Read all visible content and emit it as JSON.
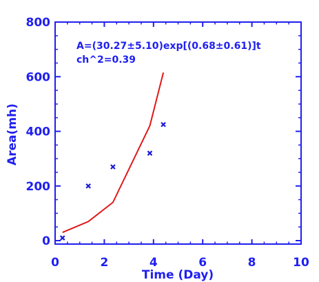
{
  "chart_data": {
    "type": "scatter",
    "xlabel": "Time (Day)",
    "ylabel": "Area(mh)",
    "xlim": [
      0,
      10
    ],
    "ylim": [
      0,
      800
    ],
    "xticks": [
      0,
      2,
      4,
      6,
      8,
      10
    ],
    "yticks": [
      0,
      200,
      400,
      600,
      800
    ],
    "grid": false,
    "annotations": [
      "A=(30.27±5.10)exp[(0.68±0.61)]t",
      "ch^2=0.39"
    ],
    "series": [
      {
        "type": "scatter",
        "marker": "x",
        "x": [
          0.3,
          1.35,
          2.35,
          3.85,
          4.4
        ],
        "y": [
          10,
          200,
          270,
          320,
          425
        ]
      },
      {
        "type": "line",
        "x": [
          0.3,
          1.35,
          2.35,
          3.85,
          4.4
        ],
        "y": [
          30,
          70,
          140,
          420,
          615
        ]
      }
    ],
    "colors": {
      "axes": "#1f1ff0",
      "markers": "#1a1ad8",
      "fit_line": "#e01818"
    }
  }
}
